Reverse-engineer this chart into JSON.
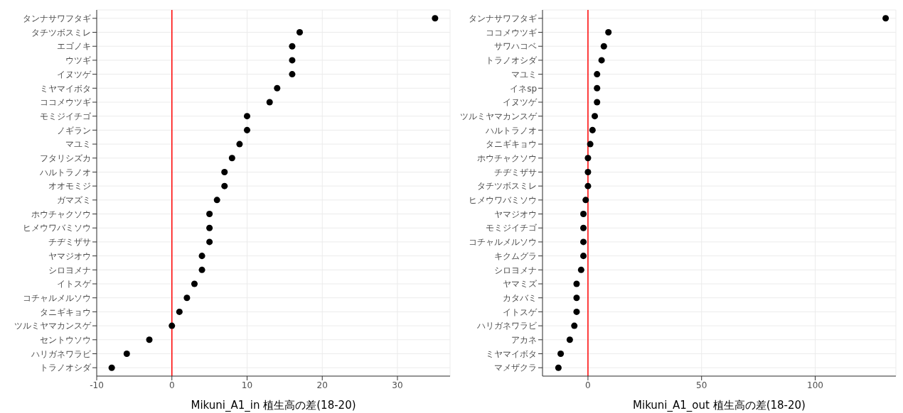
{
  "chart_data": [
    {
      "type": "scatter",
      "orientation": "horizontal",
      "xlabel": "Mikuni_A1_in 植生高の差(18-20)",
      "categories": [
        "タンナサワフタギ",
        "タチツボスミレ",
        "エゴノキ",
        "ウツギ",
        "イヌツゲ",
        "ミヤマイボタ",
        "ココメウツギ",
        "モミジイチゴ",
        "ノギラン",
        "マユミ",
        "フタリシズカ",
        "ハルトラノオ",
        "オオモミジ",
        "ガマズミ",
        "ホウチャクソウ",
        "ヒメウワバミソウ",
        "チヂミザサ",
        "ヤマジオウ",
        "シロヨメナ",
        "イトスゲ",
        "コチャルメルソウ",
        "タニギキョウ",
        "ツルミヤマカンスゲ",
        "セントウソウ",
        "ハリガネワラビ",
        "トラノオシダ"
      ],
      "values": [
        35,
        17,
        16,
        16,
        16,
        14,
        13,
        10,
        10,
        9,
        8,
        7,
        7,
        6,
        5,
        5,
        5,
        4,
        4,
        3,
        2,
        1,
        0,
        -3,
        -6,
        -8
      ],
      "color": "#000000",
      "marker": "circle",
      "xlim": [
        -10,
        37
      ],
      "xticks": [
        -10,
        0,
        10,
        20,
        30
      ],
      "grid": true,
      "ref_lines": [
        {
          "axis": "x",
          "value": 0,
          "color": "#ff0000"
        }
      ]
    },
    {
      "type": "scatter",
      "orientation": "horizontal",
      "xlabel": "Mikuni_A1_out 植生高の差(18-20)",
      "categories": [
        "タンナサワフタギ",
        "ココメウツギ",
        "サワハコベ",
        "トラノオシダ",
        "マユミ",
        "イネsp",
        "イヌツゲ",
        "ツルミヤマカンスゲ",
        "ハルトラノオ",
        "タニギキョウ",
        "ホウチャクソウ",
        "チヂミザサ",
        "タチツボスミレ",
        "ヒメウワバミソウ",
        "ヤマジオウ",
        "モミジイチゴ",
        "コチャルメルソウ",
        "キクムグラ",
        "シロヨメナ",
        "ヤマミズ",
        "カタバミ",
        "イトスゲ",
        "ハリガネワラビ",
        "アカネ",
        "ミヤマイボタ",
        "マメザクラ"
      ],
      "values": [
        131,
        9,
        7,
        6,
        4,
        4,
        4,
        3,
        2,
        1,
        0,
        0,
        0,
        -1,
        -2,
        -2,
        -2,
        -2,
        -3,
        -5,
        -5,
        -5,
        -6,
        -8,
        -12,
        -13
      ],
      "color": "#000000",
      "marker": "circle",
      "xlim": [
        -20,
        135.5
      ],
      "xticks": [
        0,
        50,
        100
      ],
      "grid": true,
      "ref_lines": [
        {
          "axis": "x",
          "value": 0,
          "color": "#ff0000"
        }
      ]
    }
  ]
}
